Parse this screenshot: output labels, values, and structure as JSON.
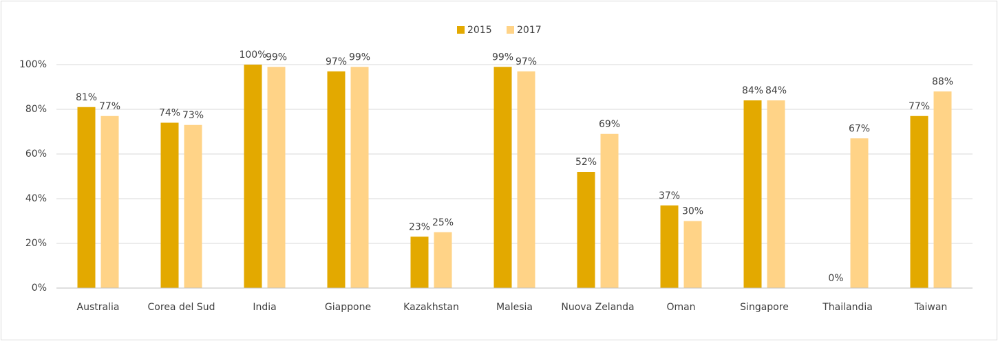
{
  "chart_data": {
    "type": "bar",
    "categories": [
      "Australia",
      "Corea del Sud",
      "India",
      "Giappone",
      "Kazakhstan",
      "Malesia",
      "Nuova Zelanda",
      "Oman",
      "Singapore",
      "Thailandia",
      "Taiwan"
    ],
    "series": [
      {
        "name": "2015",
        "color": "#e3a900",
        "values": [
          81,
          74,
          100,
          97,
          23,
          99,
          52,
          37,
          84,
          0,
          77
        ],
        "value_labels": [
          "81%",
          "74%",
          "100%",
          "97%",
          "23%",
          "99%",
          "52%",
          "37%",
          "84%",
          "0%",
          "77%"
        ]
      },
      {
        "name": "2017",
        "color": "#ffd387",
        "values": [
          77,
          73,
          99,
          99,
          25,
          97,
          69,
          30,
          84,
          67,
          88
        ],
        "value_labels": [
          "77%",
          "73%",
          "99%",
          "99%",
          "25%",
          "97%",
          "69%",
          "30%",
          "84%",
          "67%",
          "88%"
        ]
      }
    ],
    "ylim": [
      0,
      100
    ],
    "yticks": [
      {
        "value": 0,
        "label": "0%"
      },
      {
        "value": 20,
        "label": "20%"
      },
      {
        "value": 40,
        "label": "40%"
      },
      {
        "value": 60,
        "label": "60%"
      },
      {
        "value": 80,
        "label": "80%"
      },
      {
        "value": 100,
        "label": "100%"
      }
    ],
    "grid": true,
    "legend": "top"
  }
}
